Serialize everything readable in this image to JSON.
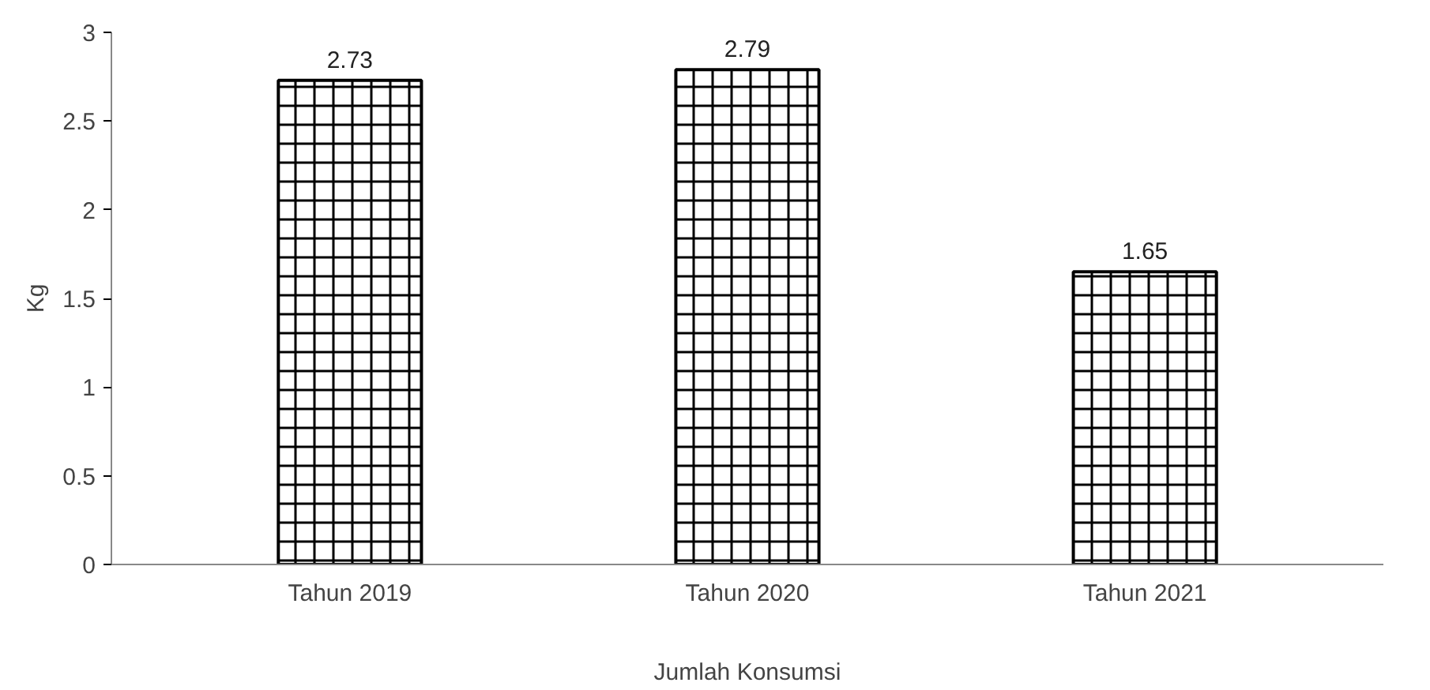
{
  "chart_data": {
    "type": "bar",
    "xlabel": "Jumlah Konsumsi",
    "ylabel": "Kg",
    "categories": [
      "Tahun 2019",
      "Tahun 2020",
      "Tahun 2021"
    ],
    "values": [
      2.73,
      2.79,
      1.65
    ],
    "color": "#000000",
    "ylim": [
      0,
      3
    ],
    "yticks": [
      0,
      0.5,
      1,
      1.5,
      2,
      2.5,
      3
    ],
    "grid": false,
    "data_labels": true
  }
}
